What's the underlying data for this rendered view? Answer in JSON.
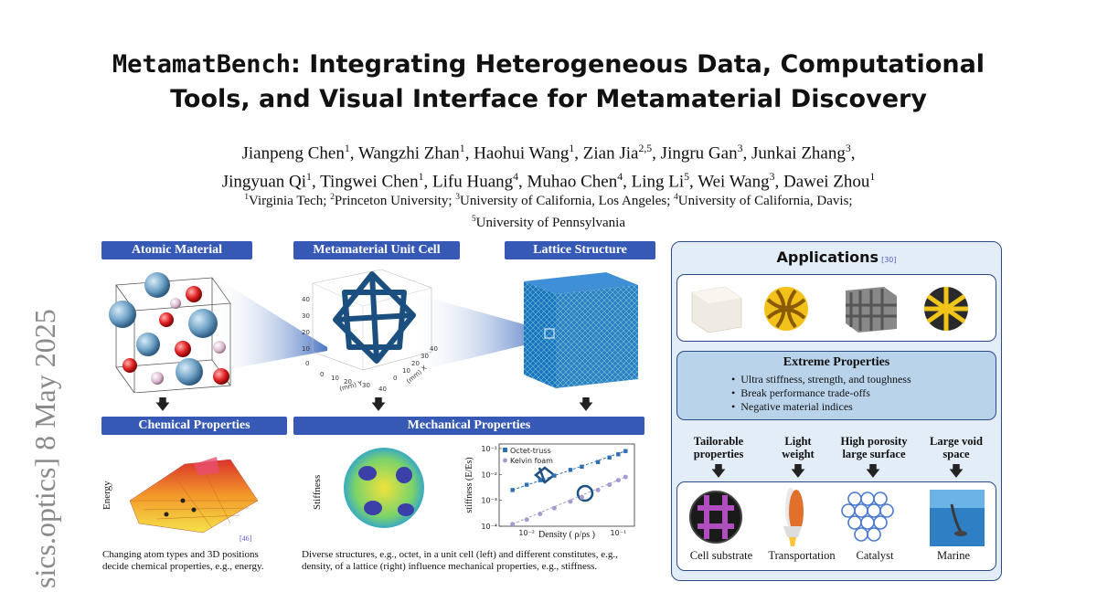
{
  "paper": {
    "title_mono": "MetamatBench",
    "title_rest_line1": ": Integrating Heterogeneous Data, Computational",
    "title_line2": "Tools, and Visual Interface for Metamaterial Discovery",
    "authors_line1": [
      {
        "name": "Jianpeng Chen",
        "sup": "1"
      },
      {
        "name": "Wangzhi Zhan",
        "sup": "1"
      },
      {
        "name": "Haohui Wang",
        "sup": "1"
      },
      {
        "name": "Zian Jia",
        "sup": "2,5"
      },
      {
        "name": "Jingru Gan",
        "sup": "3"
      },
      {
        "name": "Junkai Zhang",
        "sup": "3"
      }
    ],
    "authors_line2": [
      {
        "name": "Jingyuan Qi",
        "sup": "1"
      },
      {
        "name": "Tingwei Chen",
        "sup": "1"
      },
      {
        "name": "Lifu Huang",
        "sup": "4"
      },
      {
        "name": "Muhao Chen",
        "sup": "4"
      },
      {
        "name": "Ling Li",
        "sup": "5"
      },
      {
        "name": "Wei Wang",
        "sup": "3"
      },
      {
        "name": "Dawei Zhou",
        "sup": "1"
      }
    ],
    "affil_line1": [
      {
        "sup": "1",
        "text": "Virginia Tech; "
      },
      {
        "sup": "2",
        "text": "Princeton University; "
      },
      {
        "sup": "3",
        "text": "University of California, Los Angeles; "
      },
      {
        "sup": "4",
        "text": "University of California, Davis;"
      }
    ],
    "affil_line2": [
      {
        "sup": "5",
        "text": "University of Pennsylvania"
      }
    ],
    "arxiv_stamp": "sics.optics]  8 May 2025"
  },
  "figure": {
    "headers": {
      "atomic": "Atomic Material",
      "unitcell": "Metamaterial Unit Cell",
      "lattice": "Lattice Structure",
      "chemical": "Chemical Properties",
      "mechanical": "Mechanical Properties"
    },
    "unitcell_axes": {
      "z_ticks": [
        "40",
        "30",
        "20",
        "10",
        "0"
      ],
      "x_ticks": [
        "0",
        "10",
        "20",
        "30",
        "40"
      ],
      "y_ticks": [
        "0",
        "10",
        "20",
        "30",
        "40"
      ],
      "xlabel": "(mm) Y",
      "ylabel": "(mm) X"
    },
    "energy_plot": {
      "ylabel": "Energy",
      "ref": "[46]"
    },
    "stiffness_sphere": {
      "ylabel": "Stiffness"
    },
    "stiffness_chart": {
      "legend": [
        "Octet-truss",
        "Kelvin foam"
      ],
      "ylabel": "stiffness (E/Es)",
      "xlabel": "Density ( ρ/ρs )",
      "y_ticks": [
        "10⁻¹",
        "10⁻²",
        "10⁻³",
        "10⁻⁴"
      ],
      "x_ticks": [
        "10⁻²",
        "10⁻¹"
      ]
    },
    "caption_left": "Changing atom types and 3D positions decide chemical properties, e.g., energy.",
    "caption_right": "Diverse structures, e.g., octet, in a unit cell (left) and different constitutes, e.g., density, of a lattice (right) influence mechanical properties, e.g., stiffness.",
    "applications": {
      "title": "Applications",
      "ref": "[30]",
      "extreme_title": "Extreme Properties",
      "extreme_items": [
        "Ultra stiffness, strength, and toughness",
        "Break performance trade-offs",
        "Negative material indices"
      ],
      "features": [
        {
          "l1": "Tailorable",
          "l2": "properties"
        },
        {
          "l1": "Light",
          "l2": "weight"
        },
        {
          "l1": "High porosity",
          "l2": "large surface"
        },
        {
          "l1": "Large void",
          "l2": "space"
        }
      ],
      "app_labels": [
        "Cell substrate",
        "Transportation",
        "Catalyst",
        "Marine"
      ]
    },
    "arrow": "🡇",
    "colors": {
      "header_bar": "#3659b5",
      "apps_bg": "#e3edf7",
      "extreme_bg": "#b9d3eb",
      "border": "#2c4a88"
    }
  },
  "chart_data": {
    "type": "scatter",
    "legend": [
      "Octet-truss",
      "Kelvin foam"
    ],
    "xlabel": "Density ( ρ/ρs )",
    "ylabel": "stiffness (E/Es)",
    "x_scale": "log",
    "y_scale": "log",
    "xlim": [
      0.005,
      0.15
    ],
    "ylim": [
      0.0001,
      0.15
    ],
    "series": [
      {
        "name": "Octet-truss",
        "x": [
          0.007,
          0.01,
          0.014,
          0.02,
          0.03,
          0.04,
          0.06,
          0.08,
          0.1,
          0.12
        ],
        "y": [
          0.0025,
          0.004,
          0.006,
          0.009,
          0.015,
          0.02,
          0.03,
          0.045,
          0.06,
          0.08
        ]
      },
      {
        "name": "Kelvin foam",
        "x": [
          0.007,
          0.01,
          0.014,
          0.02,
          0.03,
          0.04,
          0.06,
          0.08,
          0.1,
          0.12
        ],
        "y": [
          0.00012,
          0.00018,
          0.0003,
          0.0005,
          0.0009,
          0.0013,
          0.0025,
          0.004,
          0.006,
          0.008
        ]
      }
    ]
  }
}
